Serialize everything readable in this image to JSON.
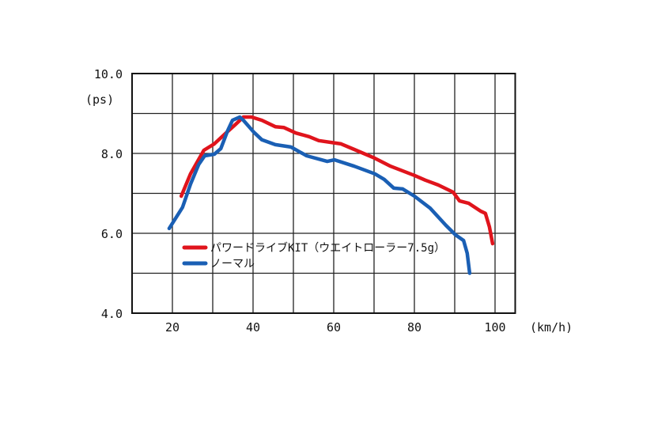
{
  "chart_data": {
    "type": "line",
    "title": "",
    "xlabel": "(km/h)",
    "ylabel": "(ps)",
    "xlim": [
      10,
      105
    ],
    "ylim": [
      4,
      10
    ],
    "x_ticks": [
      20,
      40,
      60,
      80,
      100
    ],
    "x_tick_labels": [
      "20",
      "40",
      "60",
      "80",
      "100"
    ],
    "y_ticks": [
      4,
      6,
      8,
      10
    ],
    "y_tick_labels": [
      "4.0",
      "6.0",
      "8.0",
      "10.0"
    ],
    "grid": true,
    "legend_position": "bottom-left",
    "series": [
      {
        "name": "パワードライブKIT（ウエイトローラー7.5g）",
        "color": "#e0141c",
        "x": [
          22.2,
          24.5,
          27.8,
          30.4,
          33.3,
          35.7,
          37.6,
          39.6,
          42.2,
          45.5,
          47.6,
          50.6,
          53.9,
          56.3,
          60.4,
          61.8,
          65.1,
          70.2,
          74.1,
          80.0,
          82.7,
          85.9,
          89.6,
          91.2,
          93.5,
          96.5,
          97.6,
          98.6,
          99.4
        ],
        "y": [
          6.93,
          7.49,
          8.08,
          8.24,
          8.51,
          8.73,
          8.91,
          8.91,
          8.83,
          8.67,
          8.65,
          8.51,
          8.42,
          8.32,
          8.26,
          8.24,
          8.1,
          7.88,
          7.68,
          7.45,
          7.33,
          7.21,
          7.03,
          6.81,
          6.75,
          6.55,
          6.5,
          6.16,
          5.74
        ]
      },
      {
        "name": "ノーマル",
        "color": "#1a5fb4",
        "x": [
          19.2,
          22.5,
          24.5,
          26.5,
          28.0,
          30.4,
          32.0,
          33.7,
          34.9,
          36.7,
          37.6,
          40.2,
          42.2,
          45.5,
          49.4,
          53.3,
          58.4,
          60.2,
          65.1,
          70.2,
          72.5,
          74.9,
          77.1,
          80.0,
          83.9,
          87.8,
          90.2,
          92.2,
          93.1,
          93.7
        ],
        "y": [
          6.12,
          6.65,
          7.23,
          7.72,
          7.94,
          7.98,
          8.12,
          8.57,
          8.83,
          8.91,
          8.83,
          8.53,
          8.34,
          8.22,
          8.16,
          7.94,
          7.8,
          7.84,
          7.68,
          7.49,
          7.35,
          7.13,
          7.11,
          6.93,
          6.63,
          6.2,
          5.96,
          5.82,
          5.5,
          5.0
        ]
      }
    ]
  }
}
